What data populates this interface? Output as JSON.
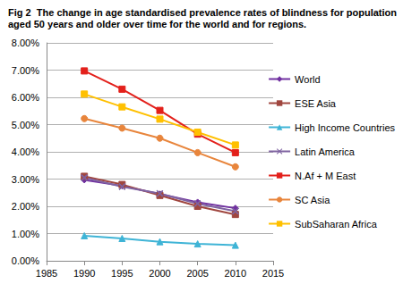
{
  "chart_data": {
    "type": "line",
    "title": "Fig 2  The change in age standardised prevalence rates of blindness for population aged 50 years and older over time for the world and for regions.",
    "x": [
      1990,
      1995,
      2000,
      2005,
      2010
    ],
    "series": [
      {
        "name": "World",
        "color": "#7030a0",
        "marker": "diamond",
        "values": [
          2.97,
          2.75,
          2.45,
          2.15,
          1.93
        ]
      },
      {
        "name": "ESE Asia",
        "color": "#a0463f",
        "marker": "square",
        "values": [
          3.1,
          2.8,
          2.4,
          2.0,
          1.7
        ]
      },
      {
        "name": "High Income Countries",
        "color": "#3fb4d6",
        "marker": "triangle",
        "values": [
          0.92,
          0.82,
          0.7,
          0.62,
          0.57
        ]
      },
      {
        "name": "Latin America",
        "color": "#7f63a1",
        "marker": "x",
        "values": [
          3.05,
          2.72,
          2.47,
          2.1,
          1.82
        ]
      },
      {
        "name": "N.Af + M East",
        "color": "#e3201b",
        "marker": "square",
        "values": [
          6.97,
          6.3,
          5.52,
          4.65,
          3.97
        ]
      },
      {
        "name": "SC Asia",
        "color": "#e8853c",
        "marker": "circle",
        "values": [
          5.22,
          4.87,
          4.5,
          3.97,
          3.45
        ]
      },
      {
        "name": "SubSaharan Africa",
        "color": "#ffc000",
        "marker": "square",
        "values": [
          6.12,
          5.65,
          5.2,
          4.72,
          4.25
        ]
      }
    ],
    "xlim": [
      1985,
      2015
    ],
    "xticks": [
      1985,
      1990,
      1995,
      2000,
      2005,
      2010,
      2015
    ],
    "ylim": [
      0,
      8
    ],
    "yticks": [
      {
        "value": 0,
        "label": "0.00%"
      },
      {
        "value": 1,
        "label": "1.00%"
      },
      {
        "value": 2,
        "label": "2.00%"
      },
      {
        "value": 3,
        "label": "3.00%"
      },
      {
        "value": 4,
        "label": "4.00%"
      },
      {
        "value": 5,
        "label": "5.00%"
      },
      {
        "value": 6,
        "label": "6.00%"
      },
      {
        "value": 7,
        "label": "7.00%"
      },
      {
        "value": 8,
        "label": "8.00%"
      }
    ],
    "grid": true,
    "legend": "right"
  }
}
